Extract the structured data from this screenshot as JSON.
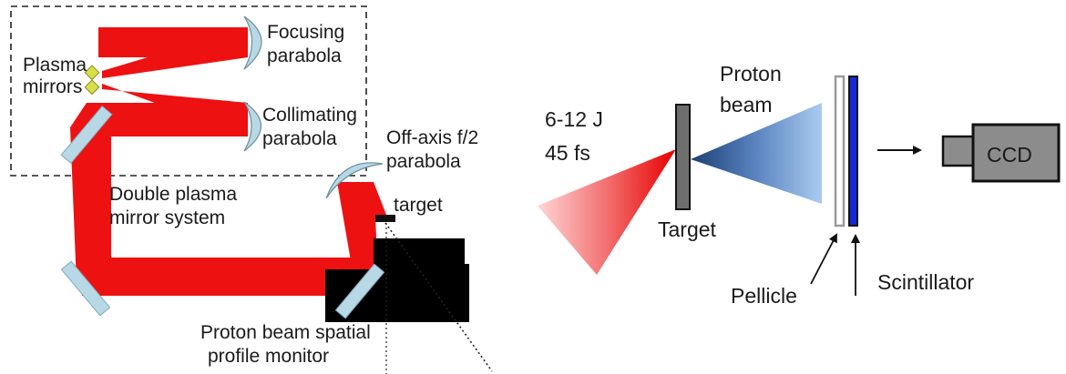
{
  "left_panel": {
    "labels": {
      "focusing_parabola": [
        "Focusing",
        "parabola"
      ],
      "plasma_mirrors": [
        "Plasma",
        "mirrors"
      ],
      "collimating_parabola": [
        "Collimating",
        "parabola"
      ],
      "off_axis_parabola": [
        "Off-axis f/2",
        "parabola"
      ],
      "double_plasma_mirror": [
        "Double plasma",
        "mirror system"
      ],
      "target": "target",
      "profile_monitor": [
        "Proton beam spatial",
        "profile monitor"
      ]
    }
  },
  "right_panel": {
    "labels": {
      "laser_energy": "6-12 J",
      "laser_duration": "45 fs",
      "proton_beam": [
        "Proton",
        "beam"
      ],
      "target": "Target",
      "pellicle": "Pellicle",
      "scintillator": "Scintillator",
      "ccd": "CCD"
    }
  },
  "colors": {
    "laser_red": "#ee1111",
    "mirror_blue": "#b8d8e6",
    "plasma_mirror_yellow": "#d7e04a",
    "proton_blue_light": "#9cc3ea",
    "proton_blue_dark": "#1c3f75",
    "scintillator_blue": "#1428d8",
    "target_gray": "#6e6e6e",
    "ccd_gray": "#8c8c8c"
  }
}
